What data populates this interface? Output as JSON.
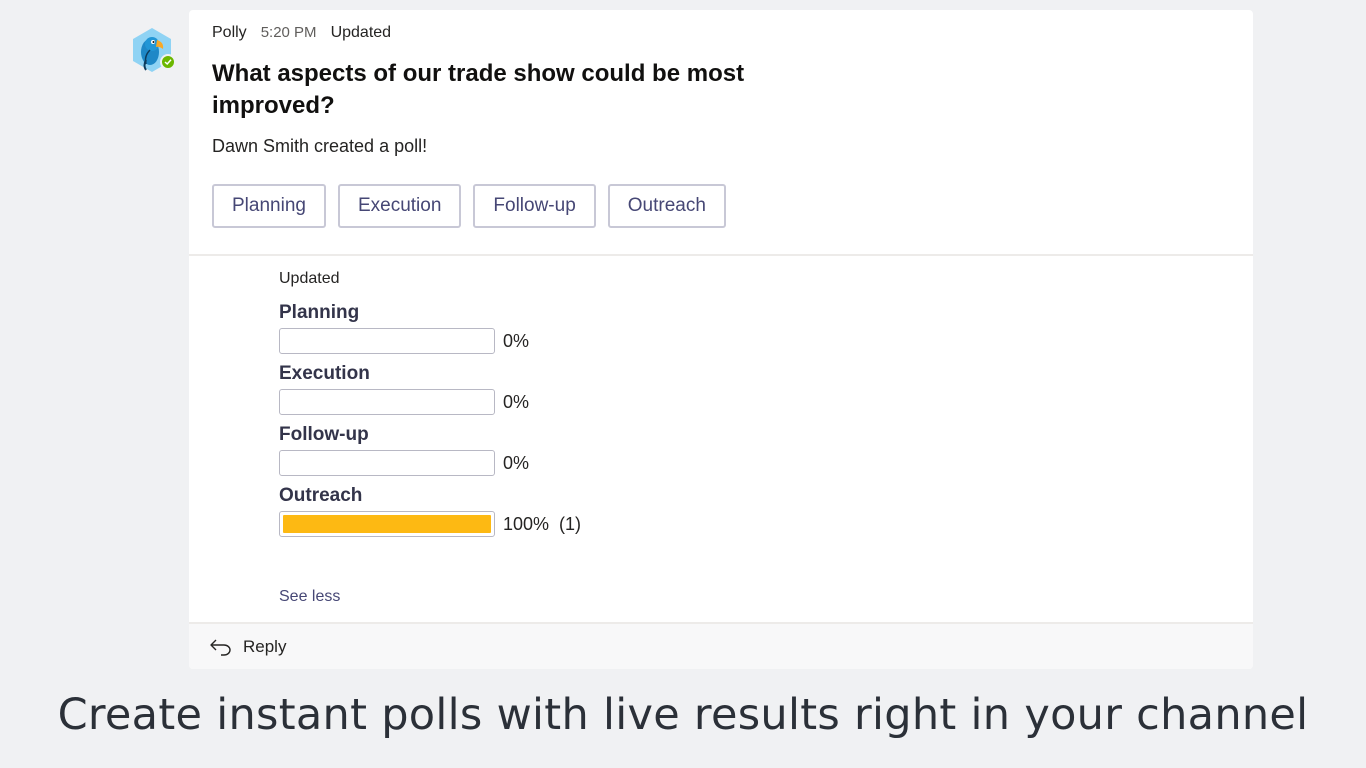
{
  "bot": {
    "avatar_icon": "polly-parrot-icon",
    "presence_icon": "available-check-icon",
    "presence_color": "#6bb700"
  },
  "message": {
    "sender": "Polly",
    "time": "5:20 PM",
    "edited_flag": "Updated",
    "question": "What aspects of our trade show could be most improved?",
    "creator_text": "Dawn Smith created a poll!",
    "options": [
      {
        "label": "Planning"
      },
      {
        "label": "Execution"
      },
      {
        "label": "Follow-up"
      },
      {
        "label": "Outreach"
      }
    ]
  },
  "results": {
    "status": "Updated",
    "bar_color": "#fdb913",
    "items": [
      {
        "label": "Planning",
        "fraction": 0,
        "percent_text": "0%",
        "votes_text": ""
      },
      {
        "label": "Execution",
        "fraction": 0,
        "percent_text": "0%",
        "votes_text": ""
      },
      {
        "label": "Follow-up",
        "fraction": 0,
        "percent_text": "0%",
        "votes_text": ""
      },
      {
        "label": "Outreach",
        "fraction": 1,
        "percent_text": "100%",
        "votes_text": "(1)"
      }
    ],
    "see_less_label": "See less"
  },
  "reply": {
    "icon": "reply-arrow-icon",
    "label": "Reply"
  },
  "caption": "Create instant polls with live results right in your channel"
}
